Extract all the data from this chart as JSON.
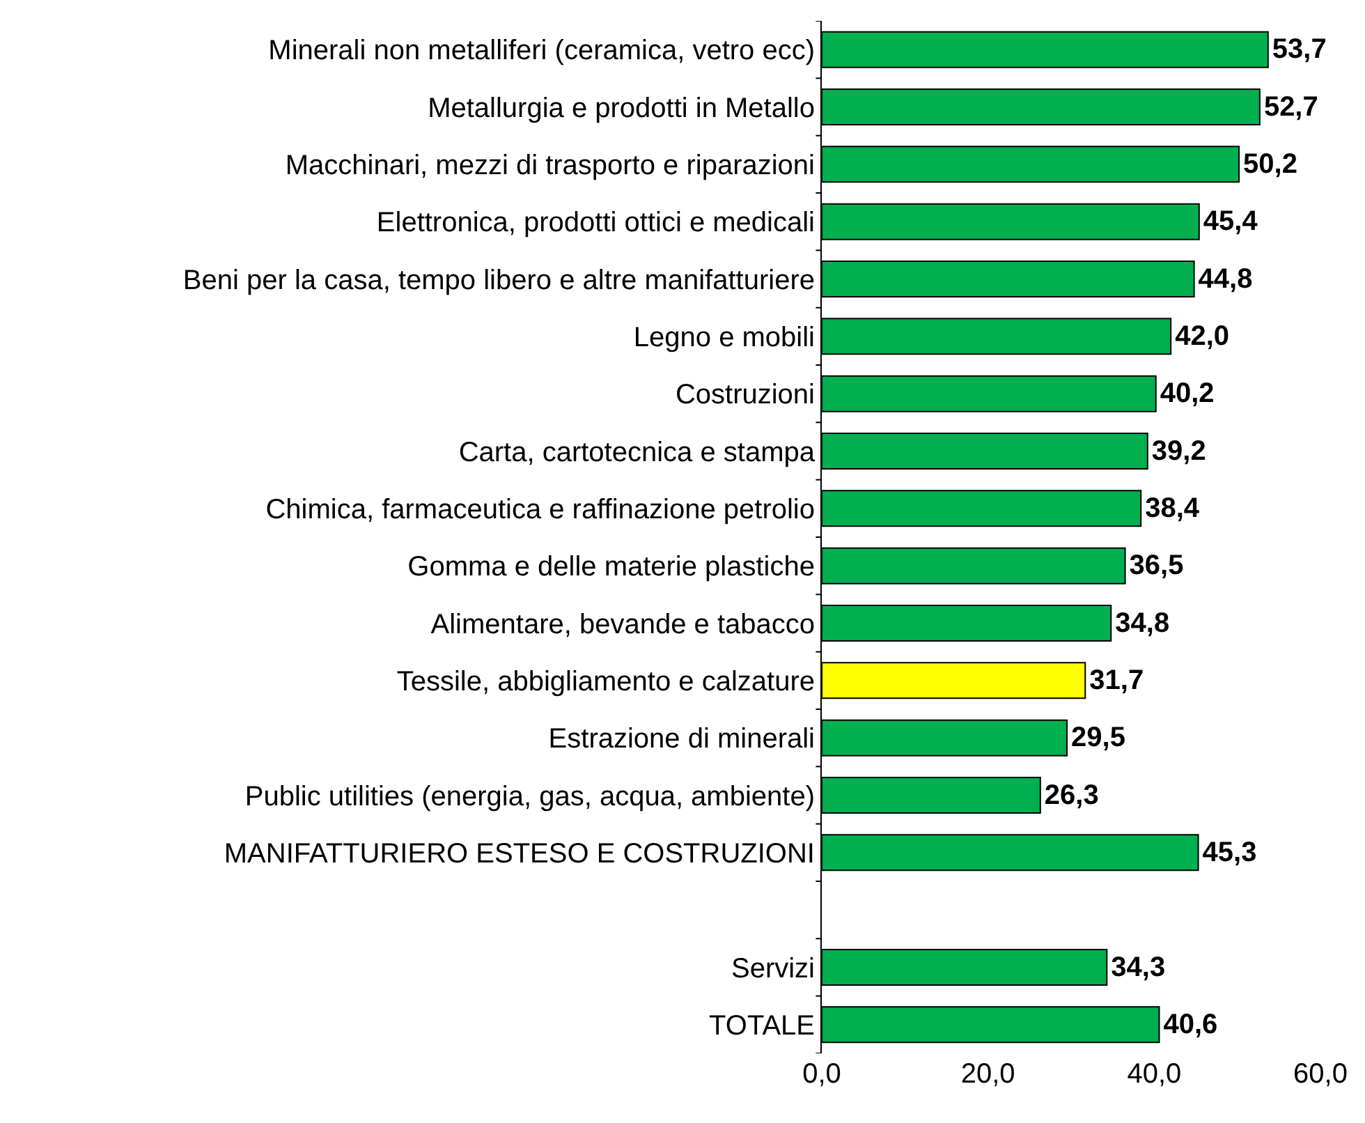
{
  "chart_data": {
    "type": "bar",
    "orientation": "horizontal",
    "categories": [
      "Minerali non metalliferi (ceramica, vetro ecc)",
      "Metallurgia e prodotti in Metallo",
      "Macchinari, mezzi di trasporto e riparazioni",
      "Elettronica, prodotti ottici e medicali",
      "Beni per la casa, tempo libero e altre manifatturiere",
      "Legno e mobili",
      "Costruzioni",
      "Carta, cartotecnica e stampa",
      "Chimica, farmaceutica e raffinazione petrolio",
      "Gomma e delle materie plastiche",
      "Alimentare, bevande e tabacco",
      "Tessile, abbigliamento e calzature",
      "Estrazione di minerali",
      "Public utilities (energia, gas, acqua, ambiente)",
      "MANIFATTURIERO ESTESO E COSTRUZIONI",
      null,
      "Servizi",
      "TOTALE"
    ],
    "values": [
      53.7,
      52.7,
      50.2,
      45.4,
      44.8,
      42.0,
      40.2,
      39.2,
      38.4,
      36.5,
      34.8,
      31.7,
      29.5,
      26.3,
      45.3,
      null,
      34.3,
      40.6
    ],
    "value_labels": [
      "53,7",
      "52,7",
      "50,2",
      "45,4",
      "44,8",
      "42,0",
      "40,2",
      "39,2",
      "38,4",
      "36,5",
      "34,8",
      "31,7",
      "29,5",
      "26,3",
      "45,3",
      null,
      "34,3",
      "40,6"
    ],
    "colors": [
      "#00b050",
      "#00b050",
      "#00b050",
      "#00b050",
      "#00b050",
      "#00b050",
      "#00b050",
      "#00b050",
      "#00b050",
      "#00b050",
      "#00b050",
      "#ffff00",
      "#00b050",
      "#00b050",
      "#00b050",
      "#00b050",
      "#00b050",
      "#00b050"
    ],
    "xlim": [
      0,
      60
    ],
    "xticks": [
      {
        "value": 0,
        "label": "0,0"
      },
      {
        "value": 20,
        "label": "20,0"
      },
      {
        "value": 40,
        "label": "40,0"
      },
      {
        "value": 60,
        "label": "60,0"
      }
    ],
    "grid": false,
    "legend": false
  }
}
